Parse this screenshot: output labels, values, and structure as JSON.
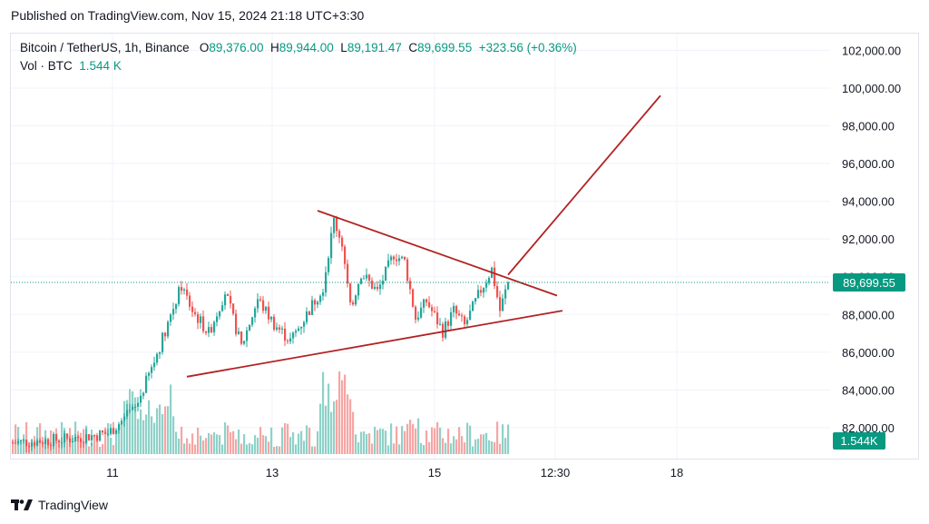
{
  "caption": "Published on TradingView.com, Nov 15, 2024 21:18 UTC+3:30",
  "legend": {
    "symbol": "Bitcoin / TetherUS, 1h, Binance",
    "open_label": "O",
    "open": "89,376.00",
    "high_label": "H",
    "high": "89,944.00",
    "low_label": "L",
    "low": "89,191.47",
    "close_label": "C",
    "close": "89,699.55",
    "change": "+323.56 (+0.36%)",
    "vol_label": "Vol · BTC",
    "vol_value": "1.544 K"
  },
  "footer": {
    "brand": "TradingView",
    "logo_icon": "tradingview-logo-icon"
  },
  "colors": {
    "up": "#26a69a",
    "down": "#ef5350",
    "vol_up": "#8fd1c8",
    "vol_down": "#f5a6a4",
    "trendline": "#b22222",
    "last_price_bg": "#089981"
  },
  "chart_data": {
    "type": "candlestick",
    "title": "Bitcoin / TetherUS, 1h, Binance",
    "y_ticks": [
      "102,000.00",
      "100,000.00",
      "98,000.00",
      "96,000.00",
      "94,000.00",
      "92,000.00",
      "90,000.00",
      "88,000.00",
      "86,000.00",
      "84,000.00",
      "82,000.00"
    ],
    "y_tick_values": [
      102000,
      100000,
      98000,
      96000,
      94000,
      92000,
      90000,
      88000,
      86000,
      84000,
      82000
    ],
    "ylim": [
      81000,
      103000
    ],
    "x_ticks": [
      "11",
      "13",
      "15",
      "12:30",
      "18"
    ],
    "last_price": 89699.55,
    "last_price_label": "89,699.55",
    "volume_label": "1.544K",
    "price_path": [
      {
        "t": 0,
        "p": 81200
      },
      {
        "t": 20,
        "p": 81400
      },
      {
        "t": 35,
        "p": 81700
      },
      {
        "t": 45,
        "p": 83000
      },
      {
        "t": 52,
        "p": 85500
      },
      {
        "t": 58,
        "p": 88000
      },
      {
        "t": 62,
        "p": 89500
      },
      {
        "t": 66,
        "p": 88200
      },
      {
        "t": 72,
        "p": 87000
      },
      {
        "t": 78,
        "p": 89200
      },
      {
        "t": 84,
        "p": 86300
      },
      {
        "t": 90,
        "p": 88800
      },
      {
        "t": 96,
        "p": 87500
      },
      {
        "t": 102,
        "p": 86600
      },
      {
        "t": 108,
        "p": 88000
      },
      {
        "t": 114,
        "p": 89500
      },
      {
        "t": 118,
        "p": 93000
      },
      {
        "t": 121,
        "p": 91800
      },
      {
        "t": 124,
        "p": 88300
      },
      {
        "t": 128,
        "p": 90200
      },
      {
        "t": 134,
        "p": 89200
      },
      {
        "t": 140,
        "p": 91200
      },
      {
        "t": 144,
        "p": 90800
      },
      {
        "t": 148,
        "p": 87800
      },
      {
        "t": 152,
        "p": 88700
      },
      {
        "t": 158,
        "p": 87100
      },
      {
        "t": 162,
        "p": 88200
      },
      {
        "t": 166,
        "p": 87400
      },
      {
        "t": 172,
        "p": 89300
      },
      {
        "t": 176,
        "p": 90400
      },
      {
        "t": 179,
        "p": 88200
      },
      {
        "t": 182,
        "p": 89700
      }
    ],
    "drawings": [
      {
        "name": "triangle-upper-trendline",
        "from": {
          "t": 112,
          "p": 93500
        },
        "to": {
          "t": 200,
          "p": 89000
        }
      },
      {
        "name": "triangle-lower-trendline",
        "from": {
          "t": 64,
          "p": 84700
        },
        "to": {
          "t": 202,
          "p": 88200
        }
      },
      {
        "name": "breakout-projection-line",
        "from": {
          "t": 182,
          "p": 90100
        },
        "to": {
          "t": 238,
          "p": 99600
        }
      }
    ]
  }
}
